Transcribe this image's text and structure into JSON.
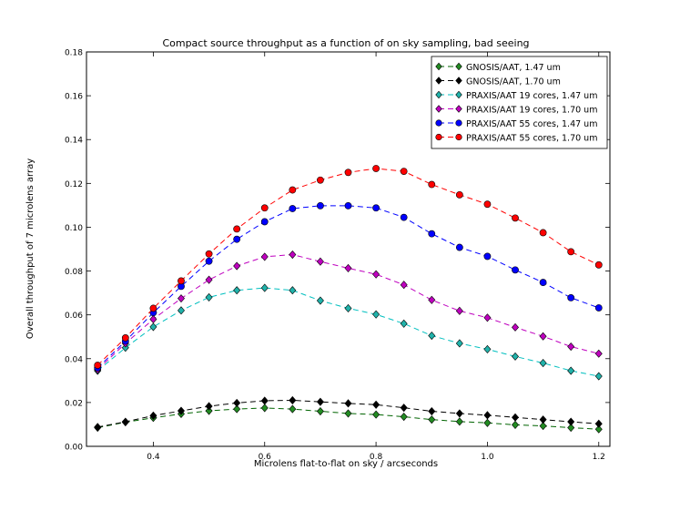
{
  "chart_data": {
    "type": "line",
    "title": "Compact source throughput as a function of on sky sampling, bad seeing",
    "xlabel": "Microlens flat-to-flat on sky / arcseconds",
    "ylabel": "Overall throughput of 7 microlens array",
    "xlim": [
      0.28,
      1.22
    ],
    "ylim": [
      0.0,
      0.18
    ],
    "xticks": [
      0.4,
      0.6,
      0.8,
      1.0,
      1.2
    ],
    "xtick_labels": [
      "0.4",
      "0.6",
      "0.8",
      "1.0",
      "1.2"
    ],
    "yticks": [
      0.0,
      0.02,
      0.04,
      0.06,
      0.08,
      0.1,
      0.12,
      0.14,
      0.16,
      0.18
    ],
    "ytick_labels": [
      "0.00",
      "0.02",
      "0.04",
      "0.06",
      "0.08",
      "0.10",
      "0.12",
      "0.14",
      "0.16",
      "0.18"
    ],
    "legend_position": "top-right",
    "x": [
      0.3,
      0.35,
      0.4,
      0.45,
      0.5,
      0.55,
      0.6,
      0.65,
      0.7,
      0.75,
      0.8,
      0.85,
      0.9,
      0.95,
      1.0,
      1.05,
      1.1,
      1.15,
      1.2
    ],
    "series": [
      {
        "name": "GNOSIS/AAT, 1.47 um",
        "color": "#006400",
        "marker": "diamond",
        "markerColor": "#228b22",
        "values": [
          0.0085,
          0.011,
          0.013,
          0.0148,
          0.0162,
          0.017,
          0.0175,
          0.017,
          0.016,
          0.015,
          0.0145,
          0.0135,
          0.0122,
          0.0113,
          0.0107,
          0.0098,
          0.0093,
          0.0085,
          0.0078
        ]
      },
      {
        "name": "GNOSIS/AAT, 1.70 um",
        "color": "#000000",
        "marker": "diamond",
        "markerColor": "#000000",
        "values": [
          0.0088,
          0.0112,
          0.014,
          0.0162,
          0.0183,
          0.0198,
          0.0208,
          0.021,
          0.0203,
          0.0196,
          0.019,
          0.0176,
          0.016,
          0.015,
          0.0142,
          0.0132,
          0.0122,
          0.0112,
          0.0103
        ]
      },
      {
        "name": "PRAXIS/AAT 19 cores, 1.47 um",
        "color": "#00bfbf",
        "marker": "diamond",
        "markerColor": "#20b2aa",
        "values": [
          0.0345,
          0.045,
          0.0545,
          0.062,
          0.068,
          0.0712,
          0.0723,
          0.0712,
          0.0665,
          0.063,
          0.0602,
          0.056,
          0.0505,
          0.047,
          0.0443,
          0.041,
          0.038,
          0.0345,
          0.032
        ]
      },
      {
        "name": "PRAXIS/AAT 19 cores, 1.70 um",
        "color": "#bf00bf",
        "marker": "diamond",
        "markerColor": "#bf00bf",
        "values": [
          0.035,
          0.047,
          0.058,
          0.0675,
          0.076,
          0.0823,
          0.0865,
          0.0875,
          0.0843,
          0.0813,
          0.0785,
          0.0737,
          0.0668,
          0.0618,
          0.0587,
          0.0543,
          0.0502,
          0.0455,
          0.0423
        ]
      },
      {
        "name": "PRAXIS/AAT 55 cores, 1.47 um",
        "color": "#0000ff",
        "marker": "circle",
        "markerColor": "#0000ff",
        "values": [
          0.0358,
          0.048,
          0.061,
          0.073,
          0.0845,
          0.0945,
          0.1025,
          0.1085,
          0.1098,
          0.1098,
          0.1088,
          0.1045,
          0.097,
          0.0908,
          0.0867,
          0.0805,
          0.0748,
          0.0678,
          0.0632
        ]
      },
      {
        "name": "PRAXIS/AAT 55 cores, 1.70 um",
        "color": "#ff0000",
        "marker": "circle",
        "markerColor": "#ff0000",
        "values": [
          0.037,
          0.0495,
          0.063,
          0.0755,
          0.0878,
          0.0992,
          0.1088,
          0.117,
          0.1215,
          0.125,
          0.1268,
          0.1255,
          0.1195,
          0.1148,
          0.1105,
          0.1042,
          0.0975,
          0.0888,
          0.0828
        ]
      }
    ]
  }
}
